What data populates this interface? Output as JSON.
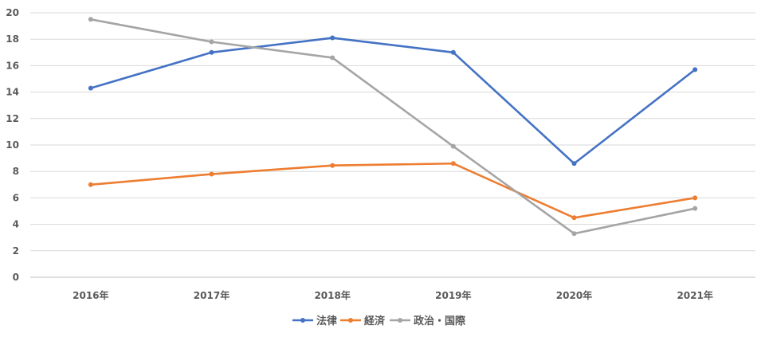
{
  "chart_data": {
    "type": "line",
    "title": "",
    "xlabel": "",
    "ylabel": "",
    "categories": [
      "2016年",
      "2017年",
      "2018年",
      "2019年",
      "2020年",
      "2021年"
    ],
    "ylim": [
      0,
      20
    ],
    "yticks": [
      "0",
      "2",
      "4",
      "6",
      "8",
      "10",
      "12",
      "14",
      "16",
      "18",
      "20"
    ],
    "grid": true,
    "legend_position": "bottom",
    "series": [
      {
        "name": "法律",
        "color": "#4472C4",
        "values": [
          14.3,
          17.0,
          18.1,
          17.0,
          8.6,
          15.7
        ]
      },
      {
        "name": "経済",
        "color": "#ED7D31",
        "values": [
          7.0,
          7.8,
          8.45,
          8.6,
          4.5,
          6.0
        ]
      },
      {
        "name": "政治・国際",
        "color": "#A5A5A5",
        "values": [
          19.5,
          17.8,
          16.6,
          9.9,
          3.3,
          5.2
        ]
      }
    ]
  }
}
